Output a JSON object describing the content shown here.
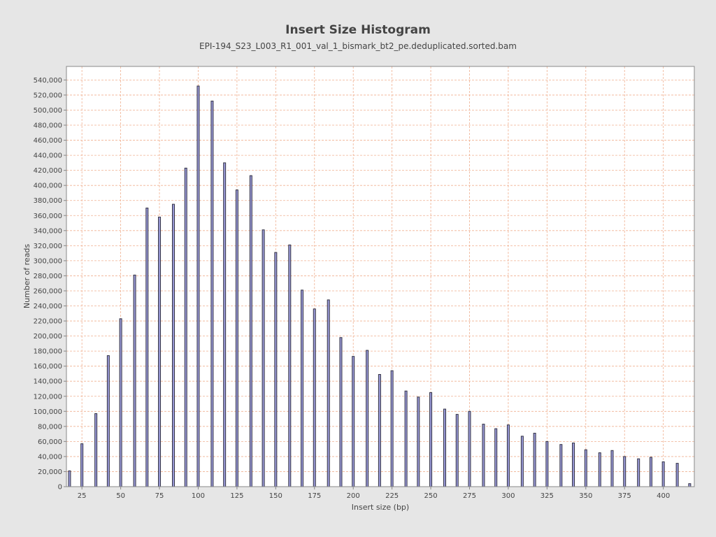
{
  "chart_data": {
    "type": "bar",
    "title": "Insert Size Histogram",
    "subtitle": "EPI-194_S23_L003_R1_001_val_1_bismark_bt2_pe.deduplicated.sorted.bam",
    "xlabel": "Insert size (bp)",
    "ylabel": "Number of reads",
    "xlim": [
      15,
      420
    ],
    "ylim": [
      0,
      558000
    ],
    "x_ticks": [
      25,
      50,
      75,
      100,
      125,
      150,
      175,
      200,
      225,
      250,
      275,
      300,
      325,
      350,
      375,
      400
    ],
    "y_ticks": [
      0,
      20000,
      40000,
      60000,
      80000,
      100000,
      120000,
      140000,
      160000,
      180000,
      200000,
      220000,
      240000,
      260000,
      280000,
      300000,
      320000,
      340000,
      360000,
      380000,
      400000,
      420000,
      440000,
      460000,
      480000,
      500000,
      520000,
      540000
    ],
    "grid": true,
    "legend": "none",
    "colors": {
      "bar_fill": "#9a9ad8",
      "bar_stroke": "#333344",
      "grid": "#f0b090",
      "plot_bg": "#ffffff",
      "page_bg": "#e6e6e6"
    },
    "x": [
      17,
      25,
      34,
      42,
      50,
      59,
      67,
      75,
      84,
      92,
      100,
      109,
      117,
      125,
      134,
      142,
      150,
      159,
      167,
      175,
      184,
      192,
      200,
      209,
      217,
      225,
      234,
      242,
      250,
      259,
      267,
      275,
      284,
      292,
      300,
      309,
      317,
      325,
      334,
      342,
      350,
      359,
      367,
      375,
      384,
      392,
      400,
      409,
      417
    ],
    "values": [
      21000,
      57000,
      97000,
      174000,
      223000,
      281000,
      370000,
      358000,
      375000,
      423000,
      532000,
      512000,
      430000,
      394000,
      413000,
      341000,
      311000,
      321000,
      261000,
      236000,
      248000,
      198000,
      173000,
      181000,
      149000,
      154000,
      127000,
      119000,
      125000,
      103000,
      96000,
      100000,
      83000,
      77000,
      82000,
      67000,
      71000,
      60000,
      56000,
      58000,
      49000,
      45000,
      48000,
      40000,
      37000,
      39000,
      33000,
      31000,
      4000
    ]
  }
}
